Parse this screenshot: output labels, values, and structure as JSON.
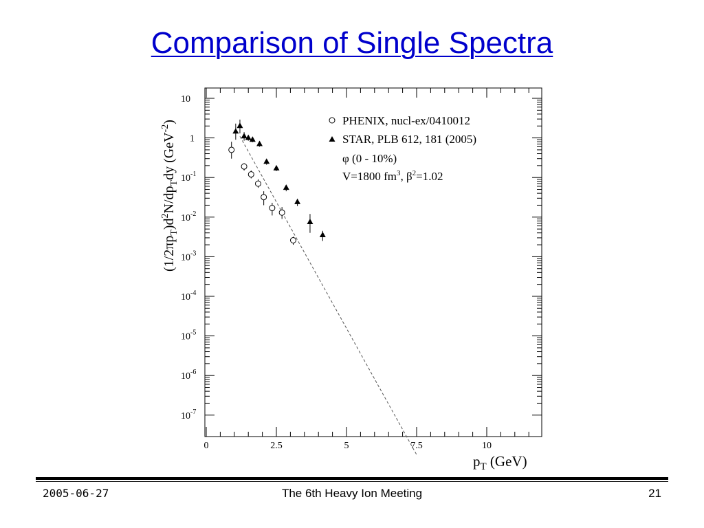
{
  "slide": {
    "title": "Comparison of Single Spectra",
    "footer_date": "2005-06-27",
    "footer_center": "The 6th Heavy Ion Meeting",
    "footer_page": "21"
  },
  "chart_data": {
    "type": "scatter",
    "xlabel_main": "p",
    "xlabel_sub": "T",
    "xlabel_rest": " (GeV)",
    "ylabel": "(1/2πp_T)d²N/dp_Tdy (GeV⁻²)",
    "xlim": [
      0,
      11.5
    ],
    "ylim_log10": [
      -8,
      1.3
    ],
    "y_scale": "log",
    "x_ticks": [
      {
        "v": 0,
        "label": "0"
      },
      {
        "v": 2.5,
        "label": "2.5"
      },
      {
        "v": 5,
        "label": "5"
      },
      {
        "v": 7.5,
        "label": "7.5"
      },
      {
        "v": 10,
        "label": "10"
      }
    ],
    "y_ticks": [
      {
        "exp": 1,
        "base": "10",
        "sup": ""
      },
      {
        "exp": 0,
        "base": "1",
        "sup": ""
      },
      {
        "exp": -1,
        "base": "10",
        "sup": "-1"
      },
      {
        "exp": -2,
        "base": "10",
        "sup": "-2"
      },
      {
        "exp": -3,
        "base": "10",
        "sup": "-3"
      },
      {
        "exp": -4,
        "base": "10",
        "sup": "-4"
      },
      {
        "exp": -5,
        "base": "10",
        "sup": "-5"
      },
      {
        "exp": -6,
        "base": "10",
        "sup": "-6"
      },
      {
        "exp": -7,
        "base": "10",
        "sup": "-7"
      }
    ],
    "legend": {
      "position": "top-right",
      "entries": [
        {
          "marker": "open-circle",
          "label": "PHENIX, nucl-ex/0410012"
        },
        {
          "marker": "filled-triangle",
          "label": "STAR, PLB 612, 181 (2005)"
        }
      ],
      "notes": [
        "φ (0 - 10%)",
        "V=1800 fm³, β²=1.02"
      ]
    },
    "series": [
      {
        "name": "PHENIX, nucl-ex/0410012",
        "marker": "open-circle",
        "points": [
          {
            "x": 0.9,
            "y": 0.5,
            "elo": 0.3,
            "ehi": 0.8
          },
          {
            "x": 1.35,
            "y": 0.19,
            "elo": 0.15,
            "ehi": 0.23
          },
          {
            "x": 1.6,
            "y": 0.12,
            "elo": 0.095,
            "ehi": 0.15
          },
          {
            "x": 1.85,
            "y": 0.07,
            "elo": 0.055,
            "ehi": 0.09
          },
          {
            "x": 2.05,
            "y": 0.032,
            "elo": 0.02,
            "ehi": 0.045
          },
          {
            "x": 2.35,
            "y": 0.017,
            "elo": 0.011,
            "ehi": 0.023
          },
          {
            "x": 2.7,
            "y": 0.013,
            "elo": 0.009,
            "ehi": 0.018
          },
          {
            "x": 3.1,
            "y": 0.0026,
            "elo": 0.002,
            "ehi": 0.0032
          }
        ]
      },
      {
        "name": "STAR, PLB 612, 181 (2005)",
        "marker": "filled-triangle",
        "points": [
          {
            "x": 1.05,
            "y": 1.45,
            "elo": 0.9,
            "ehi": 2.3
          },
          {
            "x": 1.2,
            "y": 2.0,
            "elo": 1.3,
            "ehi": 2.9
          },
          {
            "x": 1.35,
            "y": 1.1,
            "elo": 0.85,
            "ehi": 1.4
          },
          {
            "x": 1.5,
            "y": 1.0,
            "elo": 0.85,
            "ehi": 1.15
          },
          {
            "x": 1.65,
            "y": 0.9,
            "elo": 0.78,
            "ehi": 1.02
          },
          {
            "x": 1.9,
            "y": 0.7,
            "elo": 0.6,
            "ehi": 0.8
          },
          {
            "x": 2.15,
            "y": 0.25,
            "elo": 0.21,
            "ehi": 0.29
          },
          {
            "x": 2.5,
            "y": 0.17,
            "elo": 0.145,
            "ehi": 0.2
          },
          {
            "x": 2.85,
            "y": 0.055,
            "elo": 0.045,
            "ehi": 0.065
          },
          {
            "x": 3.25,
            "y": 0.024,
            "elo": 0.019,
            "ehi": 0.029
          },
          {
            "x": 3.7,
            "y": 0.0075,
            "elo": 0.004,
            "ehi": 0.012
          },
          {
            "x": 4.15,
            "y": 0.0035,
            "elo": 0.0025,
            "ehi": 0.0045
          }
        ]
      }
    ],
    "model_curve": {
      "style": "dashed",
      "points": [
        {
          "x": 1.2,
          "y": 1.1
        },
        {
          "x": 7.5,
          "y": 1e-08
        }
      ]
    }
  }
}
